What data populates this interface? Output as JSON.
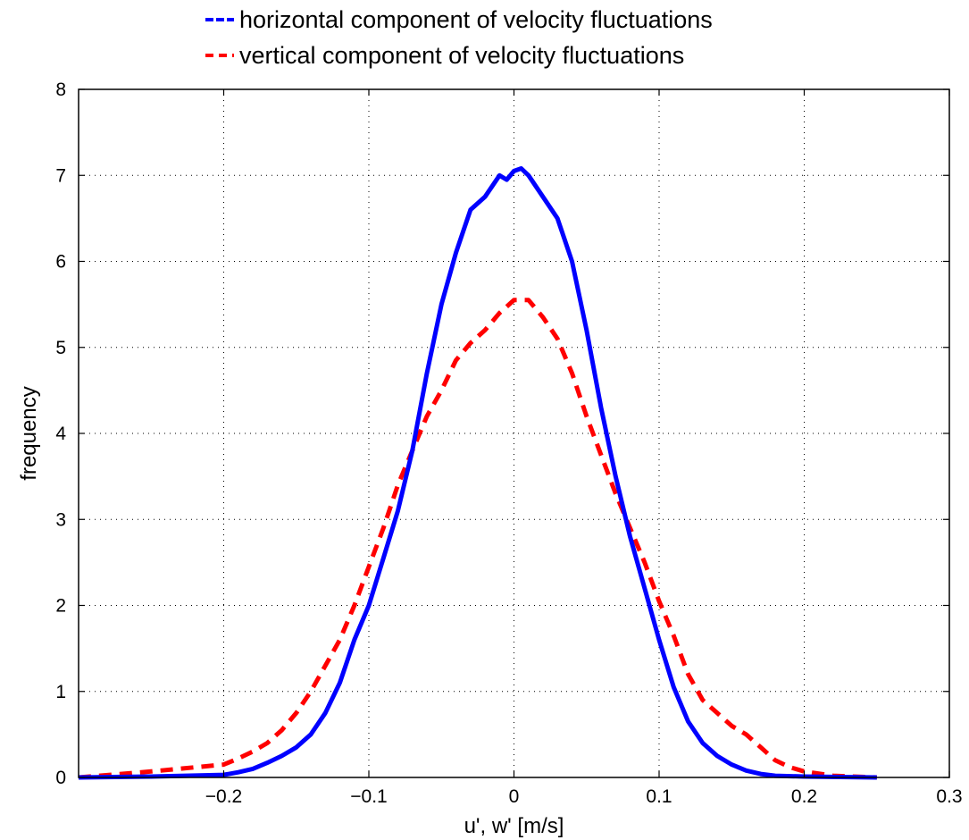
{
  "chart_data": {
    "type": "line",
    "xlabel": "u', w' [m/s]",
    "ylabel": "frequency",
    "xlim": [
      -0.3,
      0.3
    ],
    "ylim": [
      0,
      8
    ],
    "xticks": [
      -0.2,
      -0.1,
      0,
      0.1,
      0.2,
      0.3
    ],
    "xtick_labels": [
      "−0.2",
      "−0.1",
      "0",
      "0.1",
      "0.2",
      "0.3"
    ],
    "yticks": [
      0,
      1,
      2,
      3,
      4,
      5,
      6,
      7,
      8
    ],
    "ytick_labels": [
      "0",
      "1",
      "2",
      "3",
      "4",
      "5",
      "6",
      "7",
      "8"
    ],
    "grid": true,
    "legend_position": "top-center, above plot",
    "series": [
      {
        "name": "horizontal component of velocity fluctuations",
        "color": "#0000ff",
        "style": "solid",
        "x": [
          -0.3,
          -0.25,
          -0.2,
          -0.19,
          -0.18,
          -0.17,
          -0.16,
          -0.15,
          -0.14,
          -0.13,
          -0.12,
          -0.11,
          -0.1,
          -0.09,
          -0.08,
          -0.07,
          -0.06,
          -0.05,
          -0.04,
          -0.03,
          -0.02,
          -0.01,
          -0.005,
          0,
          0.005,
          0.01,
          0.02,
          0.03,
          0.04,
          0.05,
          0.06,
          0.07,
          0.08,
          0.09,
          0.1,
          0.11,
          0.12,
          0.13,
          0.14,
          0.15,
          0.16,
          0.17,
          0.18,
          0.2,
          0.25
        ],
        "y": [
          0,
          0.01,
          0.03,
          0.06,
          0.1,
          0.17,
          0.25,
          0.35,
          0.5,
          0.75,
          1.1,
          1.6,
          2.0,
          2.55,
          3.1,
          3.8,
          4.7,
          5.5,
          6.1,
          6.6,
          6.75,
          7.0,
          6.95,
          7.05,
          7.08,
          7.0,
          6.75,
          6.5,
          6.0,
          5.2,
          4.3,
          3.5,
          2.8,
          2.2,
          1.6,
          1.05,
          0.65,
          0.4,
          0.25,
          0.15,
          0.08,
          0.04,
          0.02,
          0.01,
          0
        ]
      },
      {
        "name": "vertical component of velocity fluctuations",
        "color": "#ff0000",
        "style": "dashed",
        "x": [
          -0.3,
          -0.25,
          -0.2,
          -0.19,
          -0.18,
          -0.17,
          -0.16,
          -0.15,
          -0.14,
          -0.13,
          -0.12,
          -0.11,
          -0.1,
          -0.09,
          -0.08,
          -0.07,
          -0.06,
          -0.05,
          -0.04,
          -0.03,
          -0.02,
          -0.01,
          0,
          0.01,
          0.02,
          0.03,
          0.04,
          0.05,
          0.06,
          0.07,
          0.08,
          0.09,
          0.1,
          0.11,
          0.12,
          0.13,
          0.14,
          0.15,
          0.16,
          0.17,
          0.18,
          0.19,
          0.2,
          0.22,
          0.25
        ],
        "y": [
          0,
          0.07,
          0.15,
          0.22,
          0.3,
          0.4,
          0.55,
          0.75,
          1.0,
          1.3,
          1.6,
          2.0,
          2.45,
          2.9,
          3.4,
          3.8,
          4.2,
          4.5,
          4.85,
          5.05,
          5.2,
          5.4,
          5.55,
          5.55,
          5.35,
          5.1,
          4.7,
          4.2,
          3.75,
          3.3,
          2.9,
          2.5,
          2.05,
          1.65,
          1.2,
          0.9,
          0.75,
          0.6,
          0.5,
          0.35,
          0.2,
          0.12,
          0.07,
          0.02,
          0
        ]
      }
    ]
  }
}
